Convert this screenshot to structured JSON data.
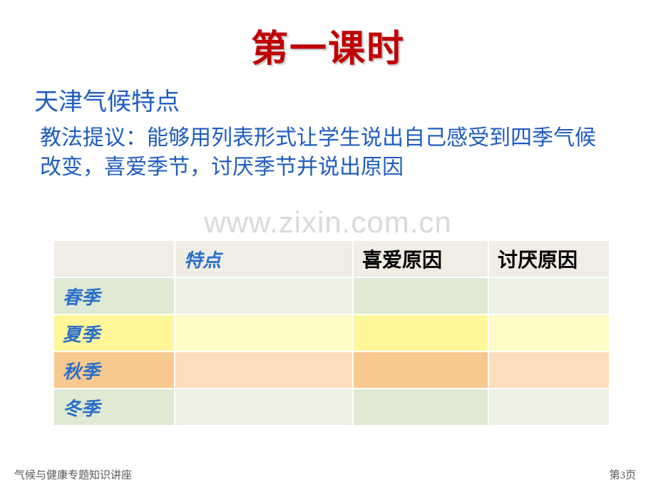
{
  "title": "第一课时",
  "subtitle": "天津气候特点",
  "hint": "教法提议：能够用列表形式让学生说出自己感受到四季气候改变，喜爱季节，讨厌季节并说出原因",
  "watermark": "www.zixin.com.cn",
  "table": {
    "headers": {
      "feature": "特点",
      "like": "喜爱原因",
      "dislike": "讨厌原因"
    },
    "rows": [
      {
        "season": "春季",
        "feature": "",
        "like": "",
        "dislike": ""
      },
      {
        "season": "夏季",
        "feature": "",
        "like": "",
        "dislike": ""
      },
      {
        "season": "秋季",
        "feature": "",
        "like": "",
        "dislike": ""
      },
      {
        "season": "冬季",
        "feature": "",
        "like": "",
        "dislike": ""
      }
    ],
    "colors": {
      "header_bg": "#f0ede4",
      "spring": {
        "dark": "#dfe9d3",
        "light": "#ecf1e4"
      },
      "summer": {
        "dark": "#fef79a",
        "light": "#fffbc7"
      },
      "autumn": {
        "dark": "#f8c98f",
        "light": "#fbdfbd"
      },
      "winter": {
        "dark": "#dfe9d3",
        "light": "#ecf1e4"
      },
      "border": "#ffffff",
      "header_text_blue": "#2a6fc9",
      "title_red": "#c00000",
      "body_blue": "#1f5cbf"
    },
    "font_sizes": {
      "title": 52,
      "subtitle": 34,
      "hint": 30,
      "cell": 26,
      "footer": 15
    }
  },
  "footer": {
    "left": "气候与健康专题知识讲座",
    "right": "第3页"
  }
}
